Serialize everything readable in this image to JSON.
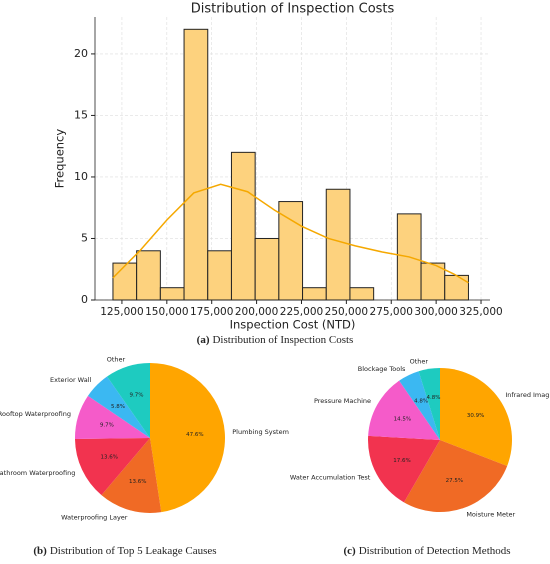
{
  "chart_data": [
    {
      "type": "histogram",
      "title": "Distribution of Inspection Costs",
      "xlabel": "Inspection Cost (NTD)",
      "ylabel": "Frequency",
      "bins": [
        120000,
        133200,
        146400,
        159600,
        172800,
        186000,
        199200,
        212400,
        225600,
        238800,
        252000,
        265200,
        278400,
        291600,
        304800,
        318000
      ],
      "values": [
        3,
        4,
        1,
        22,
        4,
        12,
        5,
        8,
        1,
        9,
        1,
        0,
        7,
        3,
        2
      ],
      "color": "#fdd27e",
      "edgecolor": "#222222",
      "kde": {
        "color": "#f5a800",
        "x": [
          120000,
          135000,
          150000,
          165000,
          180000,
          195000,
          210000,
          225000,
          240000,
          255000,
          270000,
          285000,
          300000,
          310000,
          318000
        ],
        "values": [
          1.8,
          4,
          6.5,
          8.7,
          9.4,
          8.8,
          7.3,
          6,
          5,
          4.4,
          3.9,
          3.5,
          2.8,
          2.1,
          1.4
        ]
      },
      "xlim": [
        110000,
        330000
      ],
      "ylim": [
        0,
        23
      ],
      "xticks": [
        {
          "value": 125000,
          "label": "125,000"
        },
        {
          "value": 150000,
          "label": "150,000"
        },
        {
          "value": 175000,
          "label": "175,000"
        },
        {
          "value": 200000,
          "label": "200,000"
        },
        {
          "value": 225000,
          "label": "225,000"
        },
        {
          "value": 250000,
          "label": "250,000"
        },
        {
          "value": 275000,
          "label": "275,000"
        },
        {
          "value": 300000,
          "label": "300,000"
        },
        {
          "value": 325000,
          "label": "325,000"
        }
      ],
      "yticks": [
        0,
        5,
        10,
        15,
        20
      ],
      "grid": true,
      "caption": {
        "label": "(a)",
        "text": "Distribution of Inspection Costs"
      }
    },
    {
      "type": "pie",
      "startangle": 90,
      "counterclock": false,
      "categories": [
        "Plumbing System",
        "Waterproofing Layer",
        "Bathroom Waterproofing",
        "Rooftop Waterproofing",
        "Exterior Wall",
        "Other"
      ],
      "values": [
        47.6,
        13.6,
        13.6,
        9.7,
        5.8,
        9.7
      ],
      "value_labels": [
        "47.6%",
        "13.6%",
        "13.6%",
        "9.7%",
        "5.8%",
        "9.7%"
      ],
      "colors": [
        "#ffa500",
        "#f06a25",
        "#f2334f",
        "#f55bc9",
        "#3bb8f2",
        "#1ecbc0"
      ],
      "caption": {
        "label": "(b)",
        "text": "Distribution of Top 5 Leakage Causes"
      }
    },
    {
      "type": "pie",
      "startangle": 90,
      "counterclock": false,
      "categories": [
        "Infrared Imaging",
        "Moisture Meter",
        "Water Accumulation Test",
        "Pressure Machine",
        "Blockage Tools",
        "Other"
      ],
      "values": [
        30.9,
        27.5,
        17.6,
        14.5,
        4.8,
        4.8
      ],
      "value_labels": [
        "30.9%",
        "27.5%",
        "17.6%",
        "14.5%",
        "4.8%",
        "4.8%"
      ],
      "colors": [
        "#ffa500",
        "#f06a25",
        "#f2334f",
        "#f55bc9",
        "#3bb8f2",
        "#1ecbc0"
      ],
      "caption": {
        "label": "(c)",
        "text": "Distribution of Detection Methods"
      }
    }
  ]
}
